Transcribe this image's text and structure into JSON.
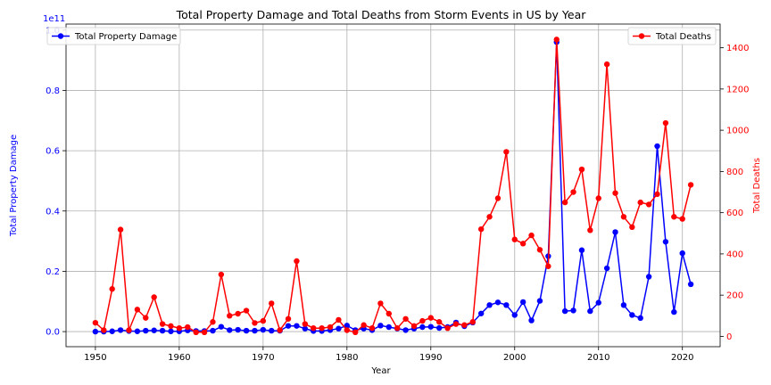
{
  "chart_data": {
    "type": "line",
    "title": "Total Property Damage and Total Deaths from Storm Events in US by Year",
    "xlabel": "Year",
    "x": [
      1950,
      1951,
      1952,
      1953,
      1954,
      1955,
      1956,
      1957,
      1958,
      1959,
      1960,
      1961,
      1962,
      1963,
      1964,
      1965,
      1966,
      1967,
      1968,
      1969,
      1970,
      1971,
      1972,
      1973,
      1974,
      1975,
      1976,
      1977,
      1978,
      1979,
      1980,
      1981,
      1982,
      1983,
      1984,
      1985,
      1986,
      1987,
      1988,
      1989,
      1990,
      1991,
      1992,
      1993,
      1994,
      1995,
      1996,
      1997,
      1998,
      1999,
      2000,
      2001,
      2002,
      2003,
      2004,
      2005,
      2006,
      2007,
      2008,
      2009,
      2010,
      2011,
      2012,
      2013,
      2014,
      2015,
      2016,
      2017,
      2018,
      2019,
      2020,
      2021
    ],
    "xlim": [
      1946.5,
      2024.5
    ],
    "xticks": [
      "1950",
      "1960",
      "1970",
      "1980",
      "1990",
      "2000",
      "2010",
      "2020"
    ],
    "grid": true,
    "series": [
      {
        "name": "Total Property Damage",
        "axis": "left",
        "ylabel": "Total Property Damage",
        "scale_label": "1e11",
        "ylim": [
          -0.05,
          1.02
        ],
        "yticks": [
          "0.0",
          "0.2",
          "0.4",
          "0.6",
          "0.8",
          "1.0"
        ],
        "color": "#0000ff",
        "legend_position": "top-left",
        "values": [
          0.0,
          0.0,
          0.001,
          0.005,
          0.002,
          0.001,
          0.003,
          0.004,
          0.003,
          0.001,
          0.001,
          0.004,
          0.002,
          0.002,
          0.003,
          0.016,
          0.005,
          0.006,
          0.003,
          0.003,
          0.006,
          0.003,
          0.003,
          0.019,
          0.019,
          0.01,
          0.002,
          0.002,
          0.005,
          0.01,
          0.02,
          0.005,
          0.01,
          0.005,
          0.02,
          0.015,
          0.01,
          0.005,
          0.01,
          0.015,
          0.016,
          0.012,
          0.015,
          0.03,
          0.018,
          0.03,
          0.06,
          0.088,
          0.097,
          0.088,
          0.055,
          0.098,
          0.037,
          0.102,
          0.25,
          0.96,
          0.068,
          0.07,
          0.27,
          0.068,
          0.096,
          0.21,
          0.33,
          0.088,
          0.055,
          0.045,
          0.182,
          0.615,
          0.298,
          0.065,
          0.26,
          0.157
        ]
      },
      {
        "name": "Total Deaths",
        "axis": "right",
        "ylabel": "Total Deaths",
        "ylim": [
          -50,
          1515
        ],
        "yticks": [
          "0",
          "200",
          "400",
          "600",
          "800",
          "1000",
          "1200",
          "1400"
        ],
        "color": "#ff0000",
        "legend_position": "top-right",
        "values": [
          66,
          30,
          230,
          518,
          30,
          130,
          90,
          190,
          60,
          50,
          40,
          45,
          20,
          20,
          70,
          300,
          100,
          110,
          125,
          65,
          75,
          160,
          30,
          85,
          365,
          60,
          40,
          40,
          45,
          80,
          30,
          20,
          55,
          40,
          160,
          110,
          40,
          85,
          50,
          75,
          90,
          70,
          40,
          60,
          55,
          70,
          520,
          580,
          670,
          895,
          470,
          450,
          490,
          420,
          340,
          1440,
          650,
          700,
          810,
          515,
          670,
          1320,
          695,
          580,
          530,
          650,
          640,
          690,
          1035,
          580,
          570,
          735
        ]
      }
    ]
  }
}
